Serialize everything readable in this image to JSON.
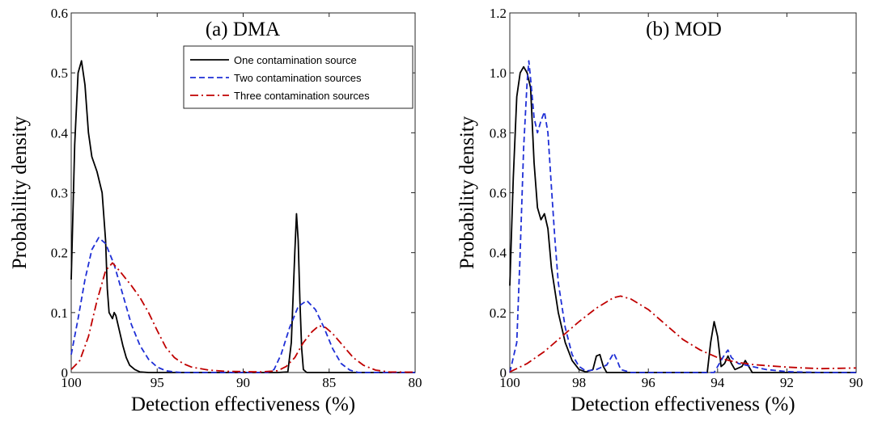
{
  "chart_data": [
    {
      "type": "line",
      "title": "(a) DMA",
      "xlabel": "Detection effectiveness (%)",
      "ylabel": "Probability density",
      "xlim": [
        100,
        80
      ],
      "ylim": [
        0,
        0.6
      ],
      "x_reversed": true,
      "xticks": [
        "100",
        "95",
        "90",
        "85",
        "80"
      ],
      "yticks": [
        "0",
        "0.1",
        "0.2",
        "0.3",
        "0.4",
        "0.5",
        "0.6"
      ],
      "xtick_values": [
        100,
        95,
        90,
        85,
        80
      ],
      "ytick_values": [
        0,
        0.1,
        0.2,
        0.3,
        0.4,
        0.5,
        0.6
      ],
      "grid": false,
      "legend_position": "top-right",
      "series": [
        {
          "name": "One contamination source",
          "color": "#000000",
          "style": "solid",
          "points": [
            [
              100,
              0.155
            ],
            [
              99.8,
              0.38
            ],
            [
              99.6,
              0.5
            ],
            [
              99.4,
              0.52
            ],
            [
              99.2,
              0.48
            ],
            [
              99.0,
              0.4
            ],
            [
              98.8,
              0.36
            ],
            [
              98.5,
              0.335
            ],
            [
              98.2,
              0.3
            ],
            [
              98.0,
              0.22
            ],
            [
              97.9,
              0.14
            ],
            [
              97.8,
              0.1
            ],
            [
              97.6,
              0.09
            ],
            [
              97.5,
              0.1
            ],
            [
              97.4,
              0.095
            ],
            [
              97.2,
              0.07
            ],
            [
              97.0,
              0.045
            ],
            [
              96.8,
              0.025
            ],
            [
              96.6,
              0.012
            ],
            [
              96.3,
              0.005
            ],
            [
              96.0,
              0.001
            ],
            [
              95.5,
              0
            ],
            [
              88.0,
              0
            ],
            [
              87.4,
              0.001
            ],
            [
              87.2,
              0.05
            ],
            [
              87.0,
              0.2
            ],
            [
              86.9,
              0.265
            ],
            [
              86.8,
              0.22
            ],
            [
              86.7,
              0.12
            ],
            [
              86.6,
              0.04
            ],
            [
              86.5,
              0.005
            ],
            [
              86.3,
              0
            ],
            [
              80,
              0
            ]
          ]
        },
        {
          "name": "Two contamination sources",
          "color": "#1f2fd6",
          "style": "dashed",
          "points": [
            [
              100,
              0.03
            ],
            [
              99.6,
              0.09
            ],
            [
              99.2,
              0.155
            ],
            [
              98.8,
              0.205
            ],
            [
              98.4,
              0.225
            ],
            [
              98.0,
              0.215
            ],
            [
              97.5,
              0.18
            ],
            [
              97.0,
              0.13
            ],
            [
              96.5,
              0.08
            ],
            [
              96.0,
              0.045
            ],
            [
              95.5,
              0.022
            ],
            [
              95.0,
              0.009
            ],
            [
              94.5,
              0.003
            ],
            [
              94.0,
              0.001
            ],
            [
              93.5,
              0
            ],
            [
              88.6,
              0
            ],
            [
              88.2,
              0.005
            ],
            [
              87.8,
              0.03
            ],
            [
              87.3,
              0.075
            ],
            [
              86.8,
              0.11
            ],
            [
              86.3,
              0.12
            ],
            [
              85.8,
              0.105
            ],
            [
              85.3,
              0.075
            ],
            [
              84.8,
              0.04
            ],
            [
              84.3,
              0.015
            ],
            [
              83.8,
              0.004
            ],
            [
              83.3,
              0
            ],
            [
              80,
              0
            ]
          ]
        },
        {
          "name": "Three contamination sources",
          "color": "#c00000",
          "style": "dashdot",
          "points": [
            [
              100,
              0.005
            ],
            [
              99.5,
              0.02
            ],
            [
              99.0,
              0.06
            ],
            [
              98.5,
              0.12
            ],
            [
              98.0,
              0.17
            ],
            [
              97.6,
              0.183
            ],
            [
              97.2,
              0.17
            ],
            [
              96.5,
              0.145
            ],
            [
              96.0,
              0.125
            ],
            [
              95.5,
              0.1
            ],
            [
              95.0,
              0.07
            ],
            [
              94.5,
              0.042
            ],
            [
              94.0,
              0.025
            ],
            [
              93.5,
              0.015
            ],
            [
              93.0,
              0.009
            ],
            [
              92.0,
              0.004
            ],
            [
              91.0,
              0.002
            ],
            [
              89.0,
              0.001
            ],
            [
              88.0,
              0.003
            ],
            [
              87.5,
              0.01
            ],
            [
              87.0,
              0.025
            ],
            [
              86.5,
              0.05
            ],
            [
              86.0,
              0.068
            ],
            [
              85.6,
              0.078
            ],
            [
              85.2,
              0.075
            ],
            [
              84.8,
              0.065
            ],
            [
              84.2,
              0.045
            ],
            [
              83.6,
              0.025
            ],
            [
              83.0,
              0.012
            ],
            [
              82.3,
              0.004
            ],
            [
              81.5,
              0.001
            ],
            [
              80,
              0.0005
            ]
          ]
        }
      ]
    },
    {
      "type": "line",
      "title": "(b) MOD",
      "xlabel": "Detection effectiveness (%)",
      "ylabel": "Probability density",
      "xlim": [
        100,
        90
      ],
      "ylim": [
        0,
        1.2
      ],
      "x_reversed": true,
      "xticks": [
        "100",
        "98",
        "96",
        "94",
        "92",
        "90"
      ],
      "yticks": [
        "0",
        "0.2",
        "0.4",
        "0.6",
        "0.8",
        "1.0",
        "1.2"
      ],
      "xtick_values": [
        100,
        98,
        96,
        94,
        92,
        90
      ],
      "ytick_values": [
        0,
        0.2,
        0.4,
        0.6,
        0.8,
        1.0,
        1.2
      ],
      "grid": false,
      "series": [
        {
          "name": "One contamination source",
          "color": "#000000",
          "style": "solid",
          "points": [
            [
              100,
              0.29
            ],
            [
              99.9,
              0.65
            ],
            [
              99.8,
              0.92
            ],
            [
              99.7,
              1.0
            ],
            [
              99.6,
              1.02
            ],
            [
              99.5,
              1.0
            ],
            [
              99.4,
              0.95
            ],
            [
              99.3,
              0.7
            ],
            [
              99.2,
              0.55
            ],
            [
              99.1,
              0.51
            ],
            [
              99.0,
              0.53
            ],
            [
              98.9,
              0.48
            ],
            [
              98.8,
              0.35
            ],
            [
              98.6,
              0.2
            ],
            [
              98.4,
              0.1
            ],
            [
              98.2,
              0.04
            ],
            [
              98.0,
              0.01
            ],
            [
              97.8,
              0.002
            ],
            [
              97.6,
              0.01
            ],
            [
              97.5,
              0.055
            ],
            [
              97.4,
              0.06
            ],
            [
              97.3,
              0.02
            ],
            [
              97.2,
              0
            ],
            [
              94.3,
              0
            ],
            [
              94.2,
              0.1
            ],
            [
              94.1,
              0.17
            ],
            [
              94.0,
              0.12
            ],
            [
              93.9,
              0.02
            ],
            [
              93.8,
              0.03
            ],
            [
              93.7,
              0.055
            ],
            [
              93.6,
              0.03
            ],
            [
              93.5,
              0.01
            ],
            [
              93.3,
              0.02
            ],
            [
              93.2,
              0.04
            ],
            [
              93.1,
              0.02
            ],
            [
              93.0,
              0
            ],
            [
              90,
              0
            ]
          ]
        },
        {
          "name": "Two contamination sources",
          "color": "#1f2fd6",
          "style": "dashed",
          "points": [
            [
              100,
              0
            ],
            [
              99.8,
              0.1
            ],
            [
              99.7,
              0.4
            ],
            [
              99.6,
              0.75
            ],
            [
              99.5,
              0.97
            ],
            [
              99.45,
              1.04
            ],
            [
              99.4,
              0.98
            ],
            [
              99.3,
              0.85
            ],
            [
              99.2,
              0.8
            ],
            [
              99.1,
              0.84
            ],
            [
              99.0,
              0.87
            ],
            [
              98.9,
              0.8
            ],
            [
              98.8,
              0.62
            ],
            [
              98.7,
              0.45
            ],
            [
              98.6,
              0.3
            ],
            [
              98.4,
              0.15
            ],
            [
              98.2,
              0.06
            ],
            [
              98.0,
              0.02
            ],
            [
              97.8,
              0.005
            ],
            [
              97.5,
              0.01
            ],
            [
              97.2,
              0.025
            ],
            [
              97.0,
              0.065
            ],
            [
              96.9,
              0.04
            ],
            [
              96.8,
              0.01
            ],
            [
              96.5,
              0
            ],
            [
              94.1,
              0
            ],
            [
              94.0,
              0.02
            ],
            [
              93.8,
              0.06
            ],
            [
              93.7,
              0.075
            ],
            [
              93.6,
              0.05
            ],
            [
              93.4,
              0.03
            ],
            [
              93.2,
              0.025
            ],
            [
              93.0,
              0.02
            ],
            [
              92.6,
              0.01
            ],
            [
              92.0,
              0.003
            ],
            [
              91.0,
              0
            ],
            [
              90,
              0
            ]
          ]
        },
        {
          "name": "Three contamination sources",
          "color": "#c00000",
          "style": "dashdot",
          "points": [
            [
              100,
              0.002
            ],
            [
              99.5,
              0.03
            ],
            [
              99.0,
              0.07
            ],
            [
              98.5,
              0.12
            ],
            [
              98.0,
              0.17
            ],
            [
              97.5,
              0.215
            ],
            [
              97.0,
              0.25
            ],
            [
              96.8,
              0.255
            ],
            [
              96.5,
              0.245
            ],
            [
              96.0,
              0.21
            ],
            [
              95.5,
              0.16
            ],
            [
              95.0,
              0.11
            ],
            [
              94.5,
              0.075
            ],
            [
              94.0,
              0.05
            ],
            [
              93.5,
              0.035
            ],
            [
              93.0,
              0.027
            ],
            [
              92.5,
              0.022
            ],
            [
              92.0,
              0.018
            ],
            [
              91.5,
              0.015
            ],
            [
              91.0,
              0.013
            ],
            [
              90.5,
              0.014
            ],
            [
              90.0,
              0.015
            ]
          ]
        }
      ]
    }
  ],
  "colors": {
    "one_source": "#000000",
    "two_sources": "#1f2fd6",
    "three_sources": "#c00000"
  }
}
